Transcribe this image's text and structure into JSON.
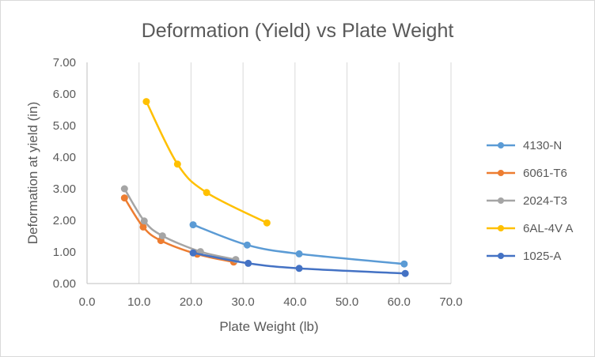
{
  "chart_data": {
    "type": "scatter",
    "title": "Deformation (Yield) vs Plate Weight",
    "xlabel": "Plate Weight (lb)",
    "ylabel": "Deformation at yield (in)",
    "xlim": [
      0,
      70
    ],
    "ylim": [
      0,
      7
    ],
    "x_ticks": [
      "0.0",
      "10.0",
      "20.0",
      "30.0",
      "40.0",
      "50.0",
      "60.0",
      "70.0"
    ],
    "y_ticks": [
      "0.00",
      "1.00",
      "2.00",
      "3.00",
      "4.00",
      "5.00",
      "6.00",
      "7.00"
    ],
    "grid": "vertical major gridlines",
    "legend_position": "right",
    "smooth_lines": true,
    "series": [
      {
        "name": "4130-N",
        "color": "#5B9BD5",
        "points": [
          [
            20.4,
            1.86
          ],
          [
            30.8,
            1.22
          ],
          [
            40.8,
            0.94
          ],
          [
            61.0,
            0.62
          ]
        ]
      },
      {
        "name": "6061-T6",
        "color": "#ED7D31",
        "points": [
          [
            7.2,
            2.71
          ],
          [
            10.8,
            1.79
          ],
          [
            14.2,
            1.36
          ],
          [
            21.2,
            0.93
          ],
          [
            28.2,
            0.68
          ]
        ]
      },
      {
        "name": "2024-T3",
        "color": "#A5A5A5",
        "points": [
          [
            7.2,
            3.0
          ],
          [
            11.0,
            1.98
          ],
          [
            14.5,
            1.51
          ],
          [
            21.8,
            1.01
          ],
          [
            28.6,
            0.76
          ]
        ]
      },
      {
        "name": "6AL-4V A",
        "color": "#FFC000",
        "points": [
          [
            11.4,
            5.76
          ],
          [
            17.4,
            3.78
          ],
          [
            23.0,
            2.88
          ],
          [
            34.6,
            1.92
          ]
        ]
      },
      {
        "name": "1025-A",
        "color": "#4472C4",
        "points": [
          [
            20.4,
            0.97
          ],
          [
            31.0,
            0.64
          ],
          [
            40.8,
            0.48
          ],
          [
            61.2,
            0.32
          ]
        ]
      }
    ]
  }
}
